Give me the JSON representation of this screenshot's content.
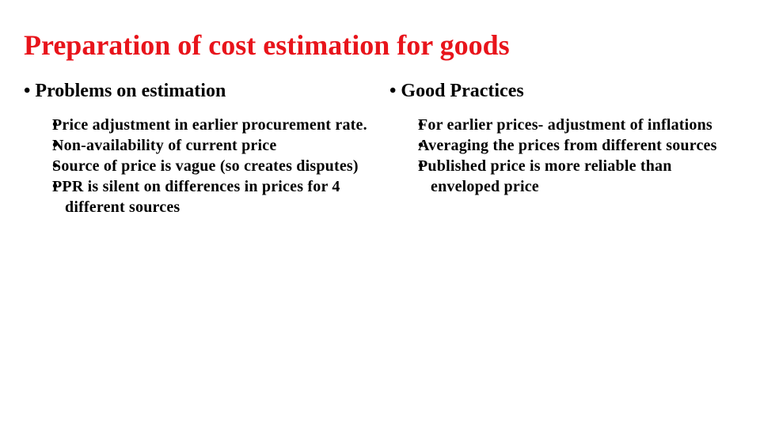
{
  "title": "Preparation of cost estimation for goods",
  "columns": [
    {
      "heading": "Problems on estimation",
      "items": [
        "Price adjustment in earlier procurement rate.",
        "Non-availability of current price",
        "Source of price is vague (so creates disputes)",
        "PPR is silent on differences in prices for 4 different sources"
      ]
    },
    {
      "heading": "Good Practices",
      "items": [
        "For earlier prices- adjustment of inflations",
        "Averaging the prices from different sources",
        "Published price is more reliable than enveloped price"
      ]
    }
  ]
}
